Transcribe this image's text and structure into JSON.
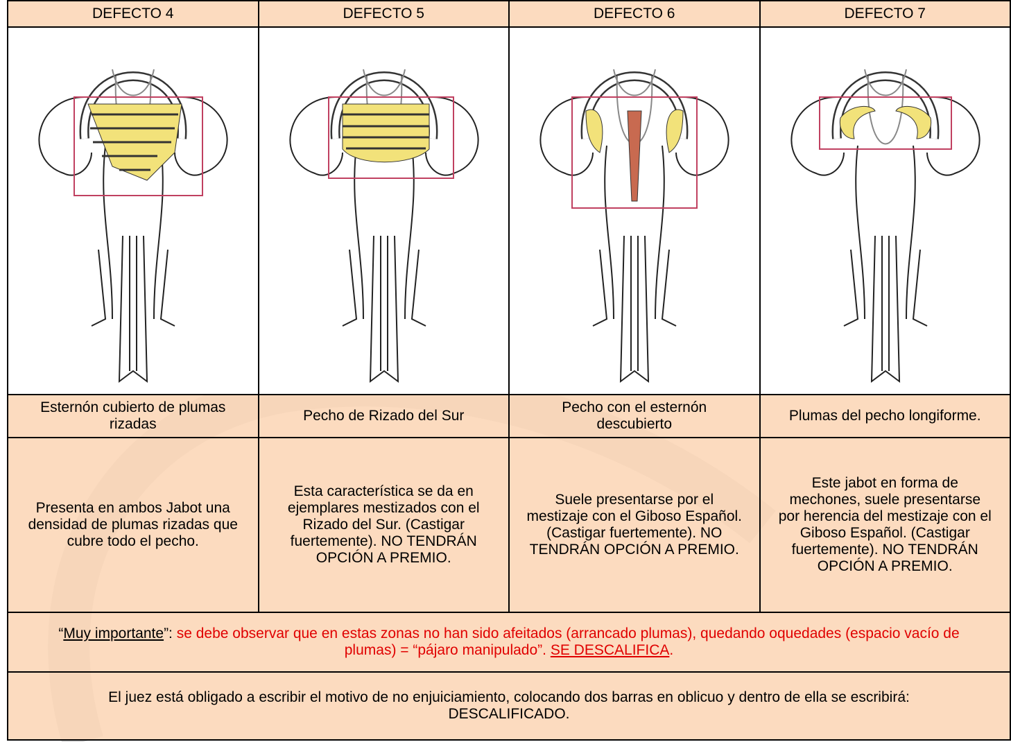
{
  "table": {
    "headers": [
      "DEFECTO 4",
      "DEFECTO 5",
      "DEFECTO 6",
      "DEFECTO 7"
    ],
    "titles": [
      "Esternón cubierto de plumas rizadas",
      "Pecho de Rizado del Sur",
      "Pecho con el esternón descubierto",
      "Plumas del pecho longiforme."
    ],
    "descriptions": [
      "Presenta en ambos Jabot una densidad de plumas rizadas que cubre todo el pecho.",
      "Esta característica se da en ejemplares mestizados con el Rizado del Sur. (Castigar fuertemente). NO TENDRÁN OPCIÓN A PREMIO.",
      "Suele presentarse por el mestizaje con el Giboso Español. (Castigar fuertemente). NO TENDRÁN OPCIÓN A PREMIO.",
      "Este jabot en forma de mechones, suele presentarse por herencia del mestizaje con el Giboso Español. (Castigar fuertemente). NO TENDRÁN OPCIÓN A PREMIO."
    ],
    "note": {
      "quote_open": "“",
      "emphasis": "Muy importante",
      "quote_close": "”:",
      "text": " se debe observar que en estas zonas no han sido afeitados (arrancado plumas), quedando oquedades (espacio vacío de plumas) = “pájaro manipulado”. ",
      "highlight": "SE DESCALIFICA",
      "end": "."
    },
    "footer": "El juez está obligado a escribir el motivo de no enjuiciamiento, colocando dos barras en oblicuo y dentro de ella se escribirá: DESCALIFICADO."
  }
}
